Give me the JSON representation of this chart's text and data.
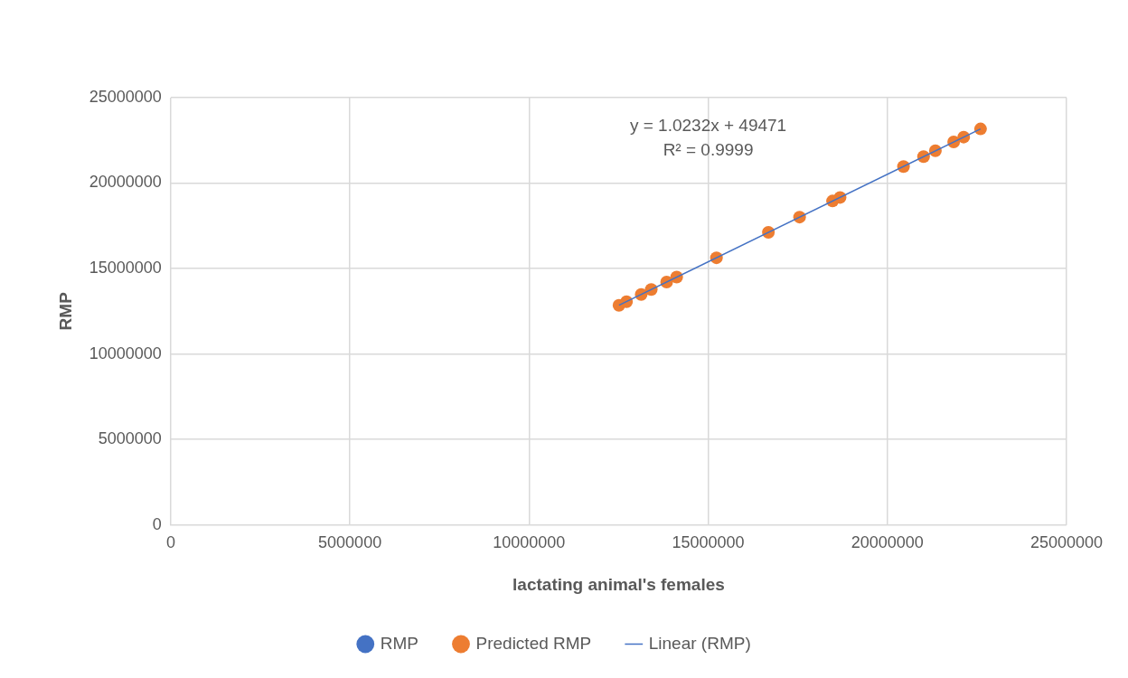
{
  "chart_data": {
    "type": "scatter",
    "xlabel": "lactating animal's females",
    "ylabel": "RMP",
    "x": [
      12510000,
      12720000,
      13130000,
      13410000,
      13840000,
      14120000,
      15230000,
      16680000,
      17550000,
      18470000,
      18680000,
      20450000,
      21010000,
      21340000,
      21850000,
      22130000,
      22600000
    ],
    "series": [
      {
        "name": "RMP",
        "color": "#4472c4",
        "values": [
          null,
          null,
          null,
          null,
          null,
          null,
          null,
          null,
          null,
          null,
          null,
          null,
          null,
          null,
          null,
          null,
          null
        ]
      },
      {
        "name": "Predicted RMP",
        "color": "#ed7d31",
        "values": [
          12850000,
          13060000,
          13480000,
          13770000,
          14210000,
          14500000,
          15630000,
          17120000,
          18010000,
          18950000,
          19160000,
          20970000,
          21550000,
          21890000,
          22410000,
          22690000,
          23170000
        ]
      },
      {
        "name": "Linear (RMP)",
        "type": "line",
        "marker": "none",
        "color": "#4472c4",
        "x": [
          12510000,
          22600000
        ],
        "values": [
          12850000,
          23170000
        ]
      }
    ],
    "annotations": [
      "y = 1.0232x + 49471",
      "R² = 0.9999"
    ],
    "xlim": [
      0,
      25000000
    ],
    "xticks": [
      0,
      5000000,
      10000000,
      15000000,
      20000000,
      25000000
    ],
    "ylim": [
      0,
      25000000
    ],
    "yticks": [
      0,
      5000000,
      10000000,
      15000000,
      20000000,
      25000000
    ],
    "grid": true,
    "legend": "bottom",
    "marker": "circle"
  }
}
